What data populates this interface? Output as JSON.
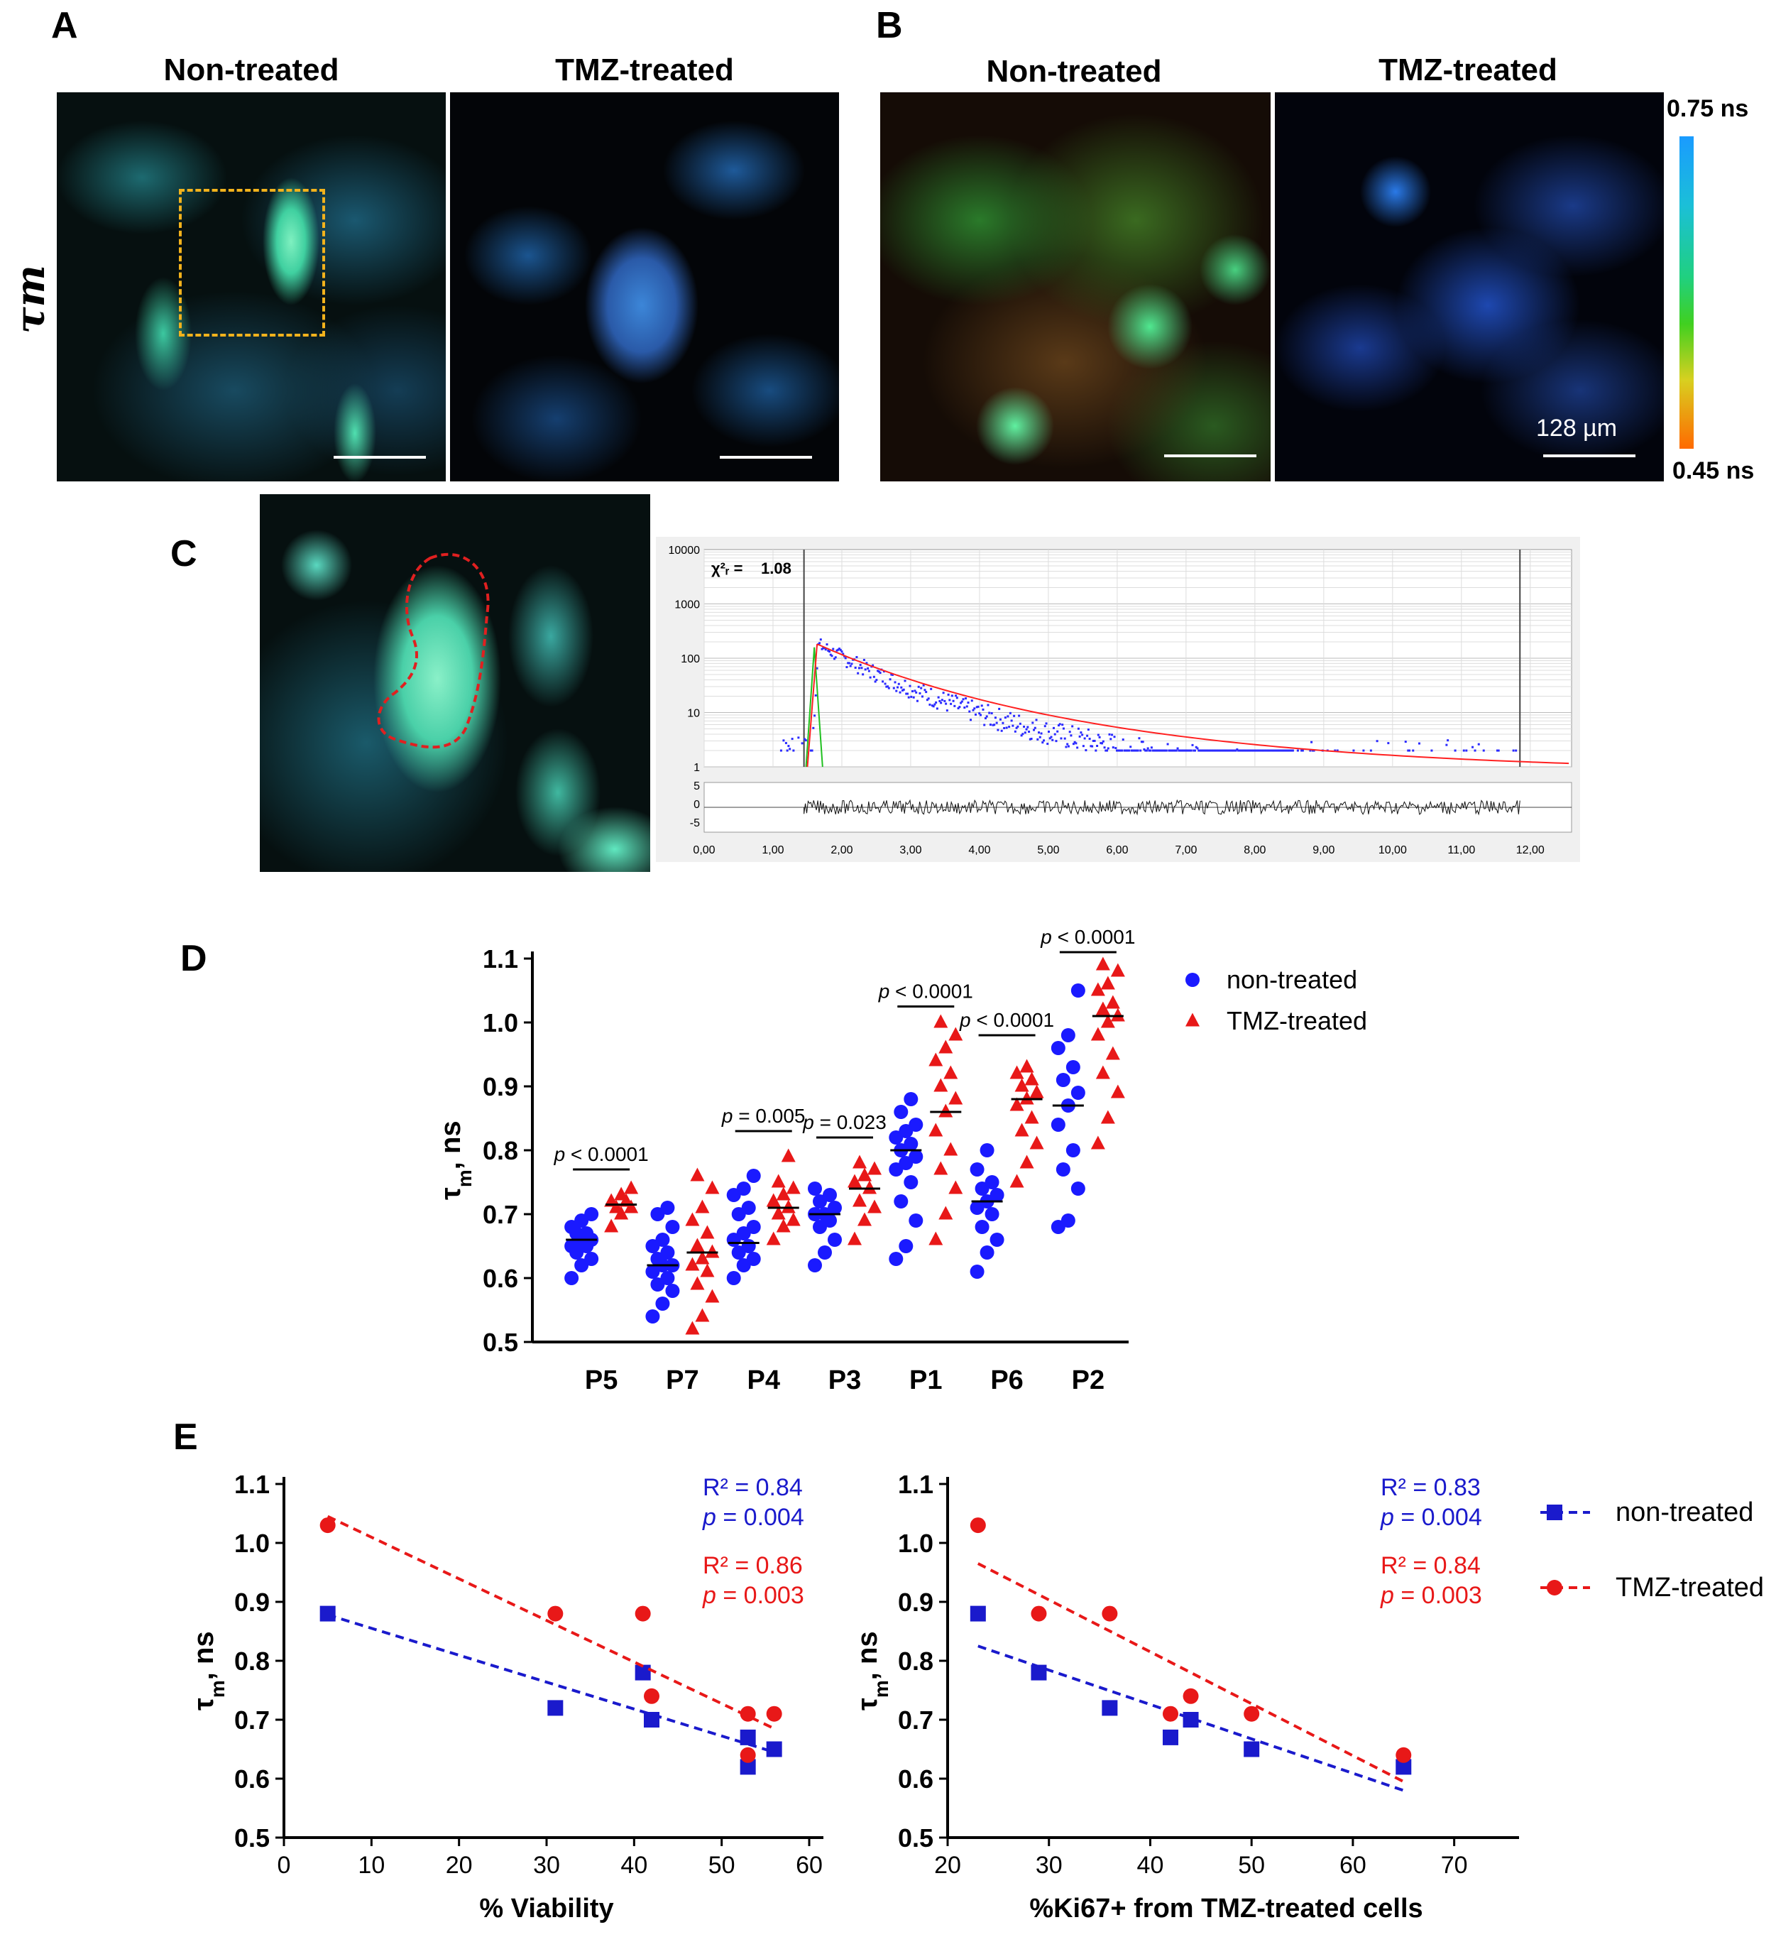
{
  "panels": {
    "A": {
      "letter": "A",
      "row_label": "τm",
      "titles": [
        "Non-treated",
        "TMZ-treated"
      ]
    },
    "B": {
      "letter": "B",
      "titles": [
        "Non-treated",
        "TMZ-treated"
      ],
      "scale_bar": "128 µm",
      "colorbar": {
        "top": "0.75 ns",
        "bottom": "0.45 ns",
        "colors": [
          "#1a9bff",
          "#20c8a0",
          "#30d040",
          "#e0d020",
          "#ff6a00"
        ]
      }
    },
    "C": {
      "letter": "C",
      "decay": {
        "chi_label": "χ²ᵣ =",
        "chi_value": "1.08",
        "y_ticks": [
          "10000",
          "1000",
          "100",
          "10",
          "1"
        ],
        "res_ticks": [
          "5",
          "0",
          "-5"
        ],
        "x_ticks": [
          "0,00",
          "1,00",
          "2,00",
          "3,00",
          "4,00",
          "5,00",
          "6,00",
          "7,00",
          "8,00",
          "9,00",
          "10,00",
          "11,00",
          "12,00"
        ]
      }
    },
    "D": {
      "letter": "D"
    },
    "E": {
      "letter": "E"
    }
  },
  "chart_data": [
    {
      "type": "scatter",
      "panel": "D",
      "ylabel": "τm, ns",
      "ylim": [
        0.5,
        1.1
      ],
      "yticks": [
        "0.5",
        "0.6",
        "0.7",
        "0.8",
        "0.9",
        "1.0",
        "1.1"
      ],
      "categories": [
        "P5",
        "P7",
        "P4",
        "P3",
        "P1",
        "P6",
        "P2"
      ],
      "series": [
        {
          "name": "non-treated",
          "color": "#1a1aff",
          "marker": "circle",
          "means": [
            0.66,
            0.62,
            0.655,
            0.7,
            0.8,
            0.72,
            0.87
          ],
          "points": [
            [
              0.6,
              0.62,
              0.63,
              0.64,
              0.65,
              0.65,
              0.66,
              0.66,
              0.67,
              0.67,
              0.68,
              0.69,
              0.7
            ],
            [
              0.54,
              0.56,
              0.58,
              0.59,
              0.6,
              0.61,
              0.62,
              0.62,
              0.63,
              0.64,
              0.65,
              0.66,
              0.68,
              0.7,
              0.71
            ],
            [
              0.6,
              0.62,
              0.63,
              0.64,
              0.65,
              0.66,
              0.67,
              0.68,
              0.7,
              0.71,
              0.73,
              0.74,
              0.76
            ],
            [
              0.62,
              0.64,
              0.66,
              0.68,
              0.69,
              0.7,
              0.7,
              0.71,
              0.72,
              0.73,
              0.74
            ],
            [
              0.63,
              0.65,
              0.69,
              0.72,
              0.75,
              0.77,
              0.78,
              0.79,
              0.8,
              0.81,
              0.82,
              0.83,
              0.84,
              0.86,
              0.88
            ],
            [
              0.61,
              0.64,
              0.66,
              0.68,
              0.7,
              0.71,
              0.72,
              0.73,
              0.74,
              0.75,
              0.77,
              0.8
            ],
            [
              0.68,
              0.69,
              0.74,
              0.77,
              0.8,
              0.84,
              0.87,
              0.89,
              0.91,
              0.93,
              0.96,
              0.98,
              1.05
            ]
          ]
        },
        {
          "name": "TMZ-treated",
          "color": "#e81818",
          "marker": "triangle",
          "means": [
            0.715,
            0.64,
            0.71,
            0.74,
            0.86,
            0.88,
            1.01
          ],
          "points": [
            [
              0.68,
              0.7,
              0.71,
              0.71,
              0.72,
              0.72,
              0.73,
              0.74
            ],
            [
              0.52,
              0.54,
              0.57,
              0.59,
              0.61,
              0.62,
              0.63,
              0.64,
              0.65,
              0.67,
              0.69,
              0.71,
              0.74,
              0.76
            ],
            [
              0.66,
              0.68,
              0.69,
              0.7,
              0.71,
              0.72,
              0.73,
              0.74,
              0.75,
              0.79
            ],
            [
              0.66,
              0.69,
              0.71,
              0.72,
              0.74,
              0.75,
              0.76,
              0.77,
              0.78
            ],
            [
              0.66,
              0.7,
              0.74,
              0.77,
              0.8,
              0.83,
              0.86,
              0.88,
              0.9,
              0.92,
              0.94,
              0.96,
              0.98,
              1.0
            ],
            [
              0.75,
              0.78,
              0.81,
              0.83,
              0.85,
              0.87,
              0.88,
              0.89,
              0.9,
              0.91,
              0.92,
              0.93
            ],
            [
              0.81,
              0.85,
              0.89,
              0.92,
              0.95,
              0.98,
              1.0,
              1.01,
              1.02,
              1.03,
              1.05,
              1.06,
              1.08,
              1.09
            ]
          ]
        }
      ],
      "annotations": [
        {
          "category": "P5",
          "text": "p < 0.0001",
          "y": 0.77
        },
        {
          "category": "P4",
          "text": "p = 0.005",
          "y": 0.83
        },
        {
          "category": "P3",
          "text": "p = 0.023",
          "y": 0.82
        },
        {
          "category": "P1",
          "text": "p < 0.0001",
          "y": 1.025
        },
        {
          "category": "P6",
          "text": "p < 0.0001",
          "y": 0.98
        },
        {
          "category": "P2",
          "text": "p < 0.0001",
          "y": 1.11
        }
      ],
      "legend": "top-right"
    },
    {
      "type": "scatter",
      "panel": "E-left",
      "xlabel": "% Viability",
      "ylabel": "τm, ns",
      "xlim": [
        0,
        60
      ],
      "ylim": [
        0.5,
        1.1
      ],
      "xticks": [
        "0",
        "10",
        "20",
        "30",
        "40",
        "50",
        "60"
      ],
      "yticks": [
        "0.5",
        "0.6",
        "0.7",
        "0.8",
        "0.9",
        "1.0",
        "1.1"
      ],
      "series": [
        {
          "name": "non-treated",
          "color": "#1a1acc",
          "marker": "square",
          "x": [
            5,
            31,
            41,
            42,
            53,
            53,
            56
          ],
          "y": [
            0.88,
            0.72,
            0.78,
            0.7,
            0.67,
            0.62,
            0.65
          ],
          "fit": [
            [
              5,
              0.878
            ],
            [
              56,
              0.645
            ]
          ]
        },
        {
          "name": "TMZ-treated",
          "color": "#e81818",
          "marker": "circle",
          "x": [
            5,
            31,
            41,
            42,
            53,
            53,
            56
          ],
          "y": [
            1.03,
            0.88,
            0.88,
            0.74,
            0.71,
            0.64,
            0.71
          ],
          "fit": [
            [
              5,
              1.045
            ],
            [
              56,
              0.685
            ]
          ]
        }
      ],
      "stats": [
        {
          "r2": "R² = 0.84",
          "p": "p = 0.004",
          "color": "#1a1acc"
        },
        {
          "r2": "R² = 0.86",
          "p": "p = 0.003",
          "color": "#e81818"
        }
      ]
    },
    {
      "type": "scatter",
      "panel": "E-right",
      "xlabel": "%Ki67+ from TMZ-treated cells",
      "ylabel": "τm, ns",
      "xlim": [
        20,
        75
      ],
      "ylim": [
        0.5,
        1.1
      ],
      "xticks": [
        "20",
        "30",
        "40",
        "50",
        "60",
        "70"
      ],
      "yticks": [
        "0.5",
        "0.6",
        "0.7",
        "0.8",
        "0.9",
        "1.0",
        "1.1"
      ],
      "series": [
        {
          "name": "non-treated",
          "color": "#1a1acc",
          "marker": "square",
          "x": [
            23,
            29,
            36,
            42,
            44,
            50,
            65
          ],
          "y": [
            0.88,
            0.78,
            0.72,
            0.67,
            0.7,
            0.65,
            0.62
          ],
          "fit": [
            [
              23,
              0.825
            ],
            [
              65,
              0.58
            ]
          ]
        },
        {
          "name": "TMZ-treated",
          "color": "#e81818",
          "marker": "circle",
          "x": [
            23,
            29,
            36,
            42,
            44,
            50,
            65
          ],
          "y": [
            1.03,
            0.88,
            0.88,
            0.71,
            0.74,
            0.71,
            0.64
          ],
          "fit": [
            [
              23,
              0.965
            ],
            [
              65,
              0.595
            ]
          ]
        }
      ],
      "stats": [
        {
          "r2": "R² = 0.83",
          "p": "p = 0.004",
          "color": "#1a1acc"
        },
        {
          "r2": "R² = 0.84",
          "p": "p = 0.003",
          "color": "#e81818"
        }
      ],
      "legend": "top-right"
    }
  ]
}
